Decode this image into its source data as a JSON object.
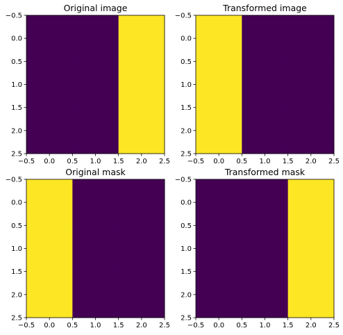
{
  "chart_data": [
    {
      "type": "heatmap",
      "title": "Original image",
      "xlim": [
        -0.5,
        2.5
      ],
      "ylim": [
        2.5,
        -0.5
      ],
      "xticks": [
        "−0.5",
        "0.0",
        "0.5",
        "1.0",
        "1.5",
        "2.0",
        "2.5"
      ],
      "yticks": [
        "−0.5",
        "0.0",
        "0.5",
        "1.0",
        "1.5",
        "2.0",
        "2.5"
      ],
      "values": [
        [
          0,
          0,
          1
        ],
        [
          0,
          0,
          1
        ],
        [
          0,
          0,
          1
        ]
      ],
      "colormap": {
        "low": "#440154",
        "high": "#fde725"
      }
    },
    {
      "type": "heatmap",
      "title": "Transformed image",
      "xlim": [
        -0.5,
        2.5
      ],
      "ylim": [
        2.5,
        -0.5
      ],
      "xticks": [
        "−0.5",
        "0.0",
        "0.5",
        "1.0",
        "1.5",
        "2.0",
        "2.5"
      ],
      "yticks": [
        "−0.5",
        "0.0",
        "0.5",
        "1.0",
        "1.5",
        "2.0",
        "2.5"
      ],
      "values": [
        [
          1,
          0,
          0
        ],
        [
          1,
          0,
          0
        ],
        [
          1,
          0,
          0
        ]
      ],
      "colormap": {
        "low": "#440154",
        "high": "#fde725"
      }
    },
    {
      "type": "heatmap",
      "title": "Original mask",
      "xlim": [
        -0.5,
        2.5
      ],
      "ylim": [
        2.5,
        -0.5
      ],
      "xticks": [
        "−0.5",
        "0.0",
        "0.5",
        "1.0",
        "1.5",
        "2.0",
        "2.5"
      ],
      "yticks": [
        "−0.5",
        "0.0",
        "0.5",
        "1.0",
        "1.5",
        "2.0",
        "2.5"
      ],
      "values": [
        [
          1,
          0,
          0
        ],
        [
          1,
          0,
          0
        ],
        [
          1,
          0,
          0
        ]
      ],
      "colormap": {
        "low": "#440154",
        "high": "#fde725"
      }
    },
    {
      "type": "heatmap",
      "title": "Transformed mask",
      "xlim": [
        -0.5,
        2.5
      ],
      "ylim": [
        2.5,
        -0.5
      ],
      "xticks": [
        "−0.5",
        "0.0",
        "0.5",
        "1.0",
        "1.5",
        "2.0",
        "2.5"
      ],
      "yticks": [
        "−0.5",
        "0.0",
        "0.5",
        "1.0",
        "1.5",
        "2.0",
        "2.5"
      ],
      "values": [
        [
          0,
          0,
          1
        ],
        [
          0,
          0,
          1
        ],
        [
          0,
          0,
          1
        ]
      ],
      "colormap": {
        "low": "#440154",
        "high": "#fde725"
      }
    }
  ]
}
